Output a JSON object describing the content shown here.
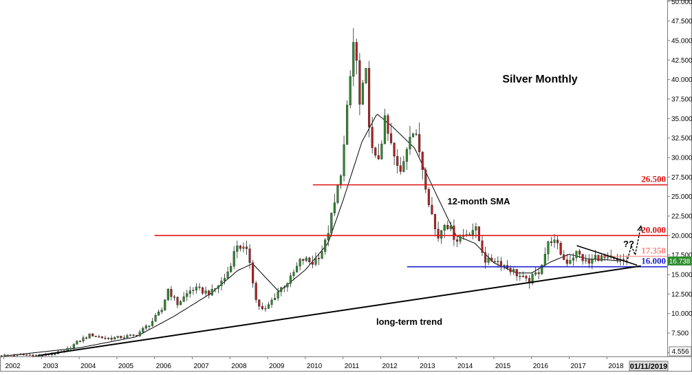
{
  "chart_data": {
    "type": "candlestick",
    "title": "Silver Monthly",
    "y_axis_position": "right",
    "ylim": [
      4.5,
      50.2
    ],
    "xlim": [
      2001.9,
      2019.6
    ],
    "y_ticks": [
      "50.000",
      "47.500",
      "45.000",
      "42.500",
      "40.000",
      "37.500",
      "35.000",
      "32.500",
      "30.000",
      "27.500",
      "25.000",
      "22.500",
      "20.000",
      "17.500",
      "15.000",
      "12.500",
      "10.000",
      "7.500",
      "5.000"
    ],
    "x_ticks": [
      "2002",
      "2003",
      "2004",
      "2005",
      "2006",
      "2007",
      "2008",
      "2009",
      "2010",
      "2011",
      "2012",
      "2013",
      "2014",
      "2015",
      "2016",
      "2017",
      "2018"
    ],
    "bottom_value_label": "4.556",
    "date_label": "01/11/2019",
    "last_price": "16.738",
    "colors": {
      "up": "#2e8b2e",
      "down": "#b22222",
      "support": "#1f1fd0",
      "resistance": "#e01010",
      "price_badge": "#2e8b2e"
    },
    "levels": [
      {
        "label": "26.500",
        "value": 26.5,
        "color": "#e01010",
        "from": 2010.2
      },
      {
        "label": "20.000",
        "value": 20.0,
        "color": "#e01010",
        "from": 2006.0
      },
      {
        "label": "17.350",
        "value": 17.35,
        "color": "#ff8080",
        "from": 2017.9
      },
      {
        "label": "16.000",
        "value": 16.0,
        "color": "#1f1fd0",
        "from": 2012.7
      }
    ],
    "annotations": {
      "sma_label": "12-month SMA",
      "trend_label": "long-term trend",
      "question": "??"
    },
    "trendline": [
      [
        2002.9,
        4.6
      ],
      [
        2018.9,
        16.1
      ]
    ],
    "triangle_upper": [
      [
        2017.2,
        18.7
      ],
      [
        2018.8,
        16.2
      ]
    ],
    "breakout_path": [
      [
        2018.55,
        17.0
      ],
      [
        2018.65,
        18.7
      ],
      [
        2018.75,
        17.5
      ],
      [
        2018.9,
        21.2
      ]
    ],
    "price_anchors": [
      [
        2001.9,
        4.6
      ],
      [
        2002.5,
        4.7
      ],
      [
        2003.0,
        4.6
      ],
      [
        2003.6,
        5.1
      ],
      [
        2004.0,
        6.5
      ],
      [
        2004.3,
        7.3
      ],
      [
        2004.7,
        6.8
      ],
      [
        2005.0,
        6.9
      ],
      [
        2005.5,
        7.2
      ],
      [
        2005.9,
        8.8
      ],
      [
        2006.2,
        10.5
      ],
      [
        2006.35,
        13.2
      ],
      [
        2006.6,
        11.2
      ],
      [
        2007.0,
        13.2
      ],
      [
        2007.5,
        12.6
      ],
      [
        2007.9,
        14.8
      ],
      [
        2008.2,
        19.0
      ],
      [
        2008.5,
        17.5
      ],
      [
        2008.7,
        11.5
      ],
      [
        2008.9,
        10.2
      ],
      [
        2009.3,
        13.0
      ],
      [
        2009.6,
        14.4
      ],
      [
        2009.9,
        17.0
      ],
      [
        2010.2,
        16.5
      ],
      [
        2010.5,
        18.5
      ],
      [
        2010.8,
        24.5
      ],
      [
        2011.0,
        30.0
      ],
      [
        2011.3,
        46.0
      ],
      [
        2011.45,
        36.0
      ],
      [
        2011.6,
        41.0
      ],
      [
        2011.75,
        31.0
      ],
      [
        2011.9,
        29.0
      ],
      [
        2012.1,
        34.5
      ],
      [
        2012.5,
        27.5
      ],
      [
        2012.8,
        34.0
      ],
      [
        2013.0,
        31.5
      ],
      [
        2013.3,
        24.0
      ],
      [
        2013.5,
        19.5
      ],
      [
        2013.7,
        22.0
      ],
      [
        2014.0,
        19.5
      ],
      [
        2014.5,
        21.0
      ],
      [
        2014.8,
        16.5
      ],
      [
        2015.0,
        17.0
      ],
      [
        2015.5,
        15.5
      ],
      [
        2015.9,
        14.0
      ],
      [
        2016.2,
        15.5
      ],
      [
        2016.5,
        19.7
      ],
      [
        2016.7,
        18.5
      ],
      [
        2016.9,
        16.5
      ],
      [
        2017.2,
        17.8
      ],
      [
        2017.5,
        16.3
      ],
      [
        2017.7,
        17.3
      ],
      [
        2018.0,
        17.0
      ],
      [
        2018.3,
        16.6
      ],
      [
        2018.45,
        16.7
      ]
    ],
    "sma_anchors": [
      [
        2002.0,
        4.55
      ],
      [
        2004.0,
        5.6
      ],
      [
        2005.5,
        7.0
      ],
      [
        2006.5,
        9.6
      ],
      [
        2007.5,
        12.6
      ],
      [
        2008.2,
        15.5
      ],
      [
        2008.6,
        16.4
      ],
      [
        2009.3,
        12.8
      ],
      [
        2010.0,
        15.6
      ],
      [
        2010.6,
        19.0
      ],
      [
        2011.0,
        24.5
      ],
      [
        2011.5,
        32.0
      ],
      [
        2011.9,
        35.6
      ],
      [
        2012.3,
        34.0
      ],
      [
        2012.9,
        31.2
      ],
      [
        2013.5,
        25.0
      ],
      [
        2014.0,
        20.0
      ],
      [
        2014.5,
        19.0
      ],
      [
        2015.0,
        16.5
      ],
      [
        2015.6,
        15.2
      ],
      [
        2016.0,
        15.2
      ],
      [
        2016.5,
        16.6
      ],
      [
        2017.0,
        17.6
      ],
      [
        2017.5,
        17.0
      ],
      [
        2018.0,
        16.9
      ],
      [
        2018.4,
        16.7
      ]
    ]
  }
}
